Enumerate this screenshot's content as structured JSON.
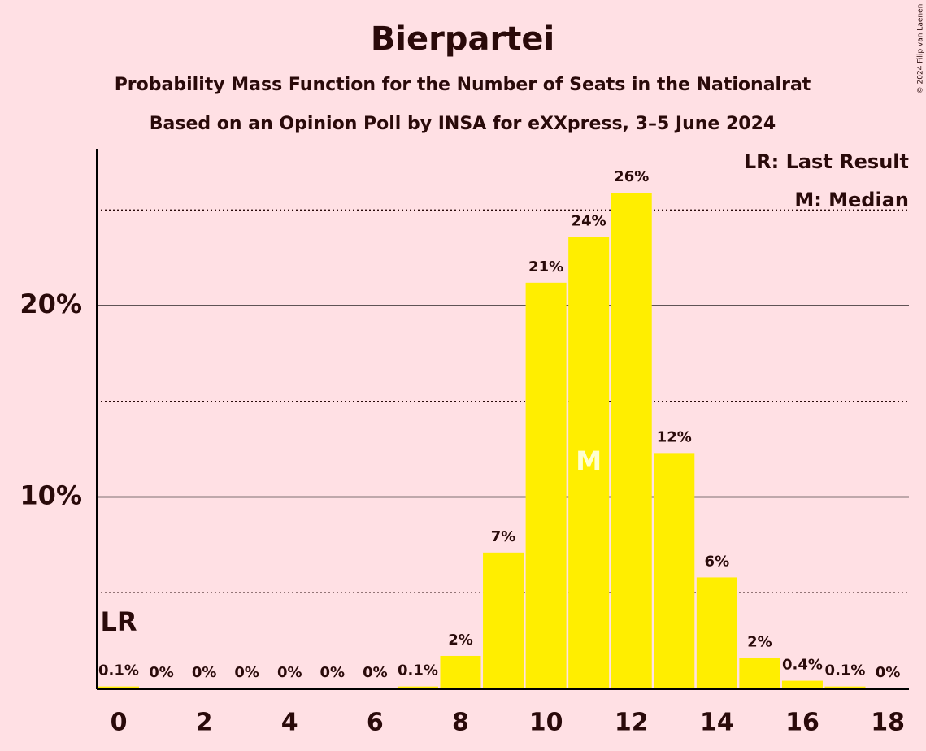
{
  "chart_data": {
    "type": "bar",
    "title": "Bierpartei",
    "subtitle": "Probability Mass Function for the Number of Seats in the Nationalrat",
    "subtitle2": "Based on an Opinion Poll by INSA for eXXpress, 3–5 June 2024",
    "categories": [
      "0",
      null,
      "2",
      null,
      "4",
      null,
      "6",
      null,
      "8",
      null,
      "10",
      null,
      "12",
      null,
      "14",
      null,
      "16",
      null,
      "18"
    ],
    "values": [
      0.1,
      0,
      0,
      0,
      0,
      0,
      0,
      0.1,
      1.7,
      7.1,
      21.2,
      23.6,
      25.9,
      12.3,
      5.8,
      1.6,
      0.4,
      0.1,
      0
    ],
    "value_labels": [
      "0.1%",
      "0%",
      "0%",
      "0%",
      "0%",
      "0%",
      "0%",
      "0.1%",
      "2%",
      "7%",
      "21%",
      "24%",
      "26%",
      "12%",
      "6%",
      "2%",
      "0.4%",
      "0.1%",
      "0%"
    ],
    "color": "#ffee00",
    "ylim": [
      0,
      28.2
    ],
    "yticks": [
      {
        "value": 10,
        "label": "10%"
      },
      {
        "value": 20,
        "label": "20%"
      }
    ],
    "minor_yticks": [
      5,
      15,
      25
    ],
    "legend": [
      "LR: Last Result",
      "M: Median"
    ],
    "annotations": [
      {
        "text": "LR",
        "category": 0
      },
      {
        "text": "M",
        "category": 11
      }
    ],
    "copyright": "© 2024 Filip van Laenen"
  }
}
